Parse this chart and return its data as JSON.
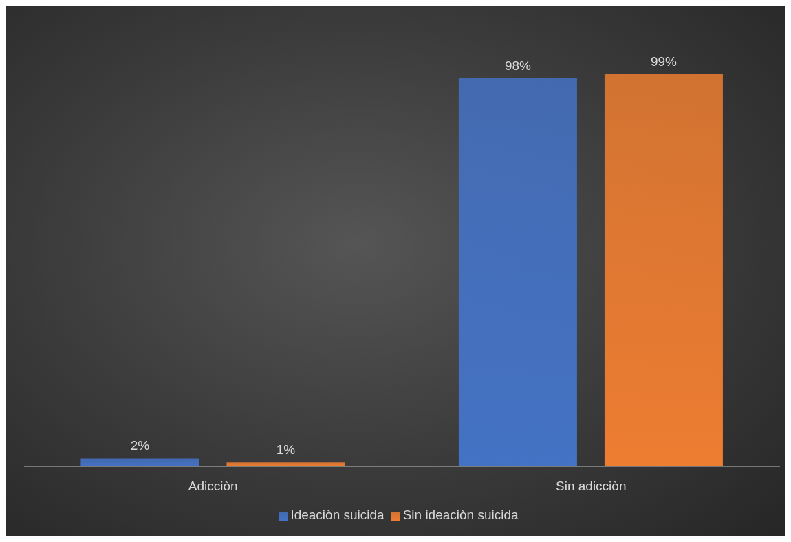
{
  "chart_data": {
    "type": "bar",
    "categories": [
      "Adicciòn",
      "Sin adicciòn"
    ],
    "series": [
      {
        "name": "Ideaciòn suicida",
        "color": "#4472c4",
        "values": [
          2,
          98
        ],
        "value_labels": [
          "2%",
          "98%"
        ]
      },
      {
        "name": "Sin ideaciòn suicida",
        "color": "#ed7d31",
        "values": [
          1,
          99
        ],
        "value_labels": [
          "1%",
          "99%"
        ]
      }
    ],
    "grid": false,
    "legend": "bottom"
  }
}
